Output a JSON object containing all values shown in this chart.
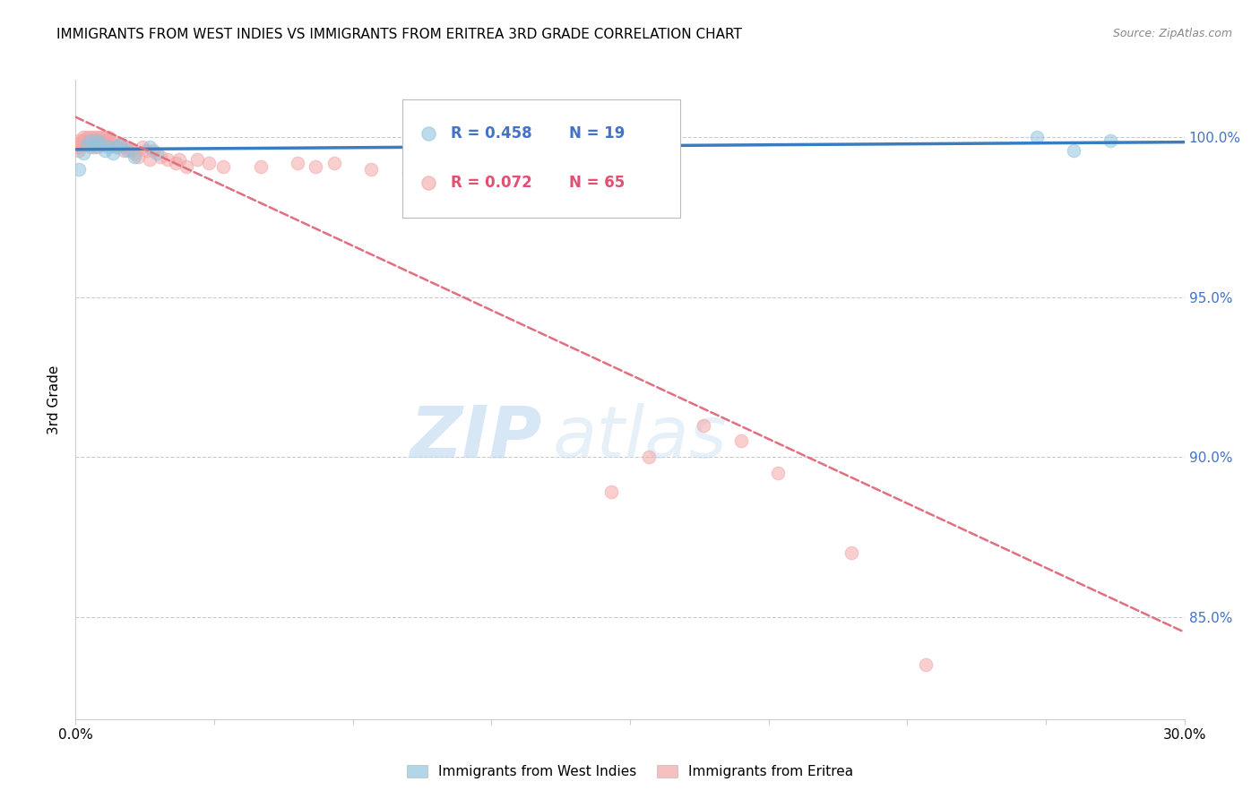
{
  "title": "IMMIGRANTS FROM WEST INDIES VS IMMIGRANTS FROM ERITREA 3RD GRADE CORRELATION CHART",
  "source": "Source: ZipAtlas.com",
  "ylabel": "3rd Grade",
  "ytick_labels": [
    "85.0%",
    "90.0%",
    "95.0%",
    "100.0%"
  ],
  "ytick_values": [
    0.85,
    0.9,
    0.95,
    1.0
  ],
  "xlim": [
    0.0,
    0.3
  ],
  "ylim": [
    0.818,
    1.018
  ],
  "blue_color": "#92c5de",
  "pink_color": "#f4a6a6",
  "blue_line_color": "#3a7dbf",
  "pink_line_color": "#e07080",
  "watermark_zip": "ZIP",
  "watermark_atlas": "atlas",
  "legend_entries": [
    {
      "r": "R = 0.458",
      "n": "N = 19",
      "color": "#4472c4"
    },
    {
      "r": "R = 0.072",
      "n": "N = 65",
      "color": "#e05070"
    }
  ],
  "blue_scatter_x": [
    0.001,
    0.002,
    0.003,
    0.004,
    0.005,
    0.006,
    0.007,
    0.008,
    0.009,
    0.01,
    0.011,
    0.012,
    0.014,
    0.016,
    0.02,
    0.022,
    0.26,
    0.27,
    0.28
  ],
  "blue_scatter_y": [
    0.99,
    0.995,
    0.998,
    0.999,
    0.997,
    0.999,
    0.998,
    0.996,
    0.997,
    0.995,
    0.997,
    0.998,
    0.996,
    0.994,
    0.997,
    0.995,
    1.0,
    0.996,
    0.999
  ],
  "pink_scatter_x": [
    0.001,
    0.001,
    0.001,
    0.001,
    0.002,
    0.002,
    0.002,
    0.003,
    0.003,
    0.003,
    0.004,
    0.004,
    0.004,
    0.005,
    0.005,
    0.005,
    0.006,
    0.006,
    0.006,
    0.007,
    0.007,
    0.008,
    0.008,
    0.008,
    0.009,
    0.009,
    0.01,
    0.01,
    0.011,
    0.012,
    0.013,
    0.013,
    0.014,
    0.015,
    0.016,
    0.017,
    0.018,
    0.019,
    0.02,
    0.021,
    0.023,
    0.025,
    0.027,
    0.028,
    0.03,
    0.033,
    0.036,
    0.04,
    0.05,
    0.06,
    0.065,
    0.07,
    0.08,
    0.09,
    0.1,
    0.11,
    0.12,
    0.13,
    0.145,
    0.155,
    0.17,
    0.18,
    0.19,
    0.21,
    0.23
  ],
  "pink_scatter_y": [
    0.999,
    0.998,
    0.997,
    0.996,
    1.0,
    0.999,
    0.998,
    1.0,
    0.999,
    0.998,
    1.0,
    0.999,
    0.997,
    1.0,
    0.999,
    0.998,
    1.0,
    0.999,
    0.997,
    1.0,
    0.998,
    1.0,
    0.999,
    0.998,
    1.0,
    0.999,
    0.999,
    0.998,
    0.997,
    0.998,
    0.997,
    0.996,
    0.997,
    0.996,
    0.995,
    0.994,
    0.997,
    0.996,
    0.993,
    0.996,
    0.994,
    0.993,
    0.992,
    0.993,
    0.991,
    0.993,
    0.992,
    0.991,
    0.991,
    0.992,
    0.991,
    0.992,
    0.99,
    0.989,
    0.988,
    0.986,
    0.987,
    0.985,
    0.889,
    0.9,
    0.91,
    0.905,
    0.895,
    0.87,
    0.835
  ]
}
